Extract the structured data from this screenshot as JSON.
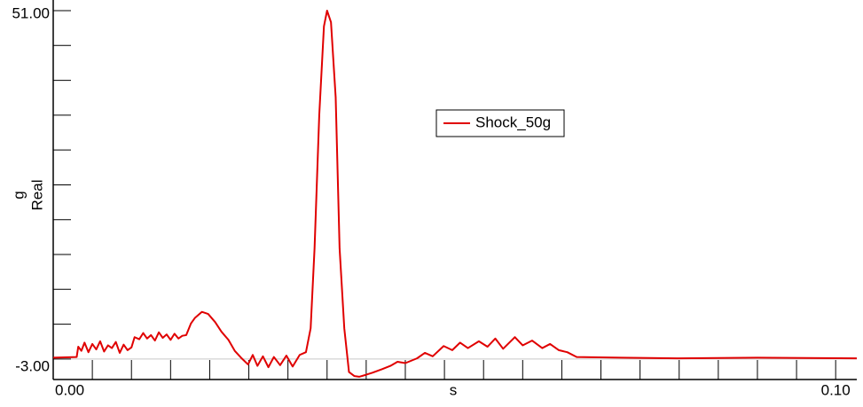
{
  "chart_data": {
    "type": "line",
    "xlabel": "s",
    "ylabel": [
      "g",
      "Real"
    ],
    "xlim": [
      0,
      0.1027
    ],
    "ylim": [
      -3,
      51
    ],
    "xticks": [
      {
        "value": 0,
        "label": "0.00"
      },
      {
        "value": 0.1,
        "label": "0.10"
      }
    ],
    "yticks": [
      {
        "value": -3,
        "label": "-3.00"
      },
      {
        "value": 51,
        "label": "51.00"
      }
    ],
    "minor_xticks": [
      0.005,
      0.01,
      0.015,
      0.02,
      0.025,
      0.03,
      0.035,
      0.04,
      0.045,
      0.05,
      0.055,
      0.06,
      0.065,
      0.07,
      0.075,
      0.08,
      0.085,
      0.09,
      0.095
    ],
    "minor_yticks": [
      0,
      5.1,
      10.2,
      15.3,
      20.4,
      25.5,
      30.6,
      35.7,
      40.8,
      45.9
    ],
    "zero_line": true,
    "legend": "top-center",
    "x": [
      0,
      0.003,
      0.0032,
      0.0036,
      0.004,
      0.0045,
      0.005,
      0.0055,
      0.006,
      0.0065,
      0.007,
      0.0075,
      0.008,
      0.0085,
      0.009,
      0.0095,
      0.01,
      0.0104,
      0.011,
      0.0115,
      0.012,
      0.0125,
      0.013,
      0.0135,
      0.014,
      0.0145,
      0.015,
      0.0155,
      0.016,
      0.0165,
      0.017,
      0.0176,
      0.0181,
      0.019,
      0.0198,
      0.0207,
      0.0215,
      0.0224,
      0.0232,
      0.024,
      0.0249,
      0.0255,
      0.0261,
      0.0268,
      0.0275,
      0.0282,
      0.029,
      0.0298,
      0.0306,
      0.0315,
      0.0323,
      0.0329,
      0.0334,
      0.034,
      0.0346,
      0.035,
      0.0355,
      0.0361,
      0.0366,
      0.0372,
      0.0378,
      0.0385,
      0.0391,
      0.04,
      0.0408,
      0.042,
      0.0431,
      0.044,
      0.045,
      0.0465,
      0.0475,
      0.0485,
      0.0499,
      0.051,
      0.052,
      0.053,
      0.0544,
      0.0555,
      0.0565,
      0.0575,
      0.059,
      0.06,
      0.0612,
      0.0625,
      0.0635,
      0.0646,
      0.0657,
      0.0669,
      0.0726,
      0.08,
      0.09,
      0.1027
    ],
    "series": [
      {
        "name": "Shock_50g",
        "color": "#e00000",
        "values": [
          0.2,
          0.3,
          1.8,
          1.2,
          2.4,
          1.0,
          2.2,
          1.4,
          2.6,
          1.1,
          2.0,
          1.6,
          2.5,
          0.9,
          2.1,
          1.3,
          1.7,
          3.2,
          2.9,
          3.8,
          3.0,
          3.5,
          2.7,
          3.9,
          3.1,
          3.6,
          2.8,
          3.7,
          3.0,
          3.4,
          3.5,
          5.2,
          6.0,
          6.9,
          6.6,
          5.4,
          4.0,
          2.8,
          1.2,
          0.2,
          -0.8,
          0.6,
          -1.0,
          0.4,
          -1.2,
          0.3,
          -0.9,
          0.5,
          -1.1,
          0.6,
          1.0,
          4.5,
          16.2,
          35.7,
          48.7,
          51,
          49.3,
          38.3,
          16.2,
          4.5,
          -1.9,
          -2.5,
          -2.6,
          -2.3,
          -2.0,
          -1.5,
          -1.0,
          -0.4,
          -0.6,
          0.1,
          0.9,
          0.4,
          1.9,
          1.3,
          2.4,
          1.6,
          2.6,
          1.8,
          3.0,
          1.5,
          3.2,
          2.0,
          2.7,
          1.6,
          2.2,
          1.3,
          1.0,
          0.3,
          0.2,
          0.1,
          0.2,
          0.1
        ]
      }
    ]
  }
}
